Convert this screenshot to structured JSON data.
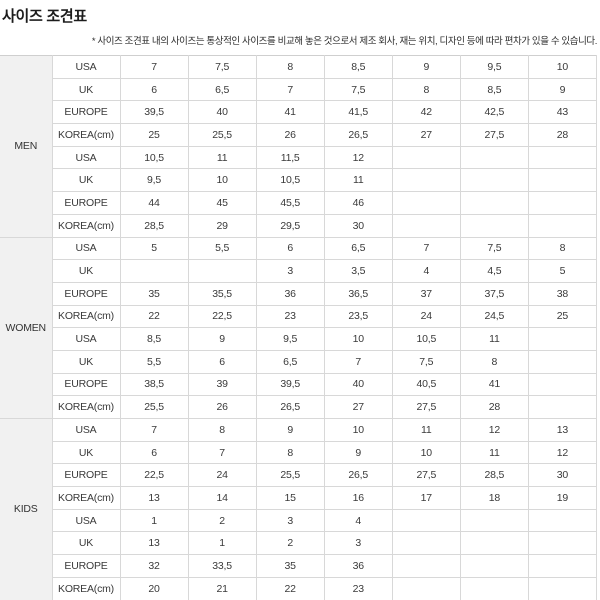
{
  "page": {
    "title": "사이즈 조견표",
    "note": "* 사이즈 조견표 내의 사이즈는 통상적인 사이즈를 비교해 놓은 것으로서 제조 회사, 재는 위치, 디자인 등에 따라 편차가 있을 수 있습니다."
  },
  "colors": {
    "group_bg": "#f1f1f1",
    "grid_border": "#d8d8d8",
    "section_border": "#a8a8a8",
    "text": "#3a3a3a"
  },
  "table": {
    "row_labels": [
      "USA",
      "UK",
      "EUROPE",
      "KOREA(cm)"
    ],
    "sections": [
      {
        "group": "MEN",
        "blocks": [
          {
            "rows": [
              [
                "7",
                "7,5",
                "8",
                "8,5",
                "9",
                "9,5",
                "10"
              ],
              [
                "6",
                "6,5",
                "7",
                "7,5",
                "8",
                "8,5",
                "9"
              ],
              [
                "39,5",
                "40",
                "41",
                "41,5",
                "42",
                "42,5",
                "43"
              ],
              [
                "25",
                "25,5",
                "26",
                "26,5",
                "27",
                "27,5",
                "28"
              ]
            ]
          },
          {
            "rows": [
              [
                "10,5",
                "11",
                "11,5",
                "12",
                "",
                "",
                ""
              ],
              [
                "9,5",
                "10",
                "10,5",
                "11",
                "",
                "",
                ""
              ],
              [
                "44",
                "45",
                "45,5",
                "46",
                "",
                "",
                ""
              ],
              [
                "28,5",
                "29",
                "29,5",
                "30",
                "",
                "",
                ""
              ]
            ]
          }
        ]
      },
      {
        "group": "WOMEN",
        "blocks": [
          {
            "rows": [
              [
                "5",
                "5,5",
                "6",
                "6,5",
                "7",
                "7,5",
                "8"
              ],
              [
                "",
                "",
                "3",
                "3,5",
                "4",
                "4,5",
                "5"
              ],
              [
                "35",
                "35,5",
                "36",
                "36,5",
                "37",
                "37,5",
                "38"
              ],
              [
                "22",
                "22,5",
                "23",
                "23,5",
                "24",
                "24,5",
                "25"
              ]
            ]
          },
          {
            "rows": [
              [
                "8,5",
                "9",
                "9,5",
                "10",
                "10,5",
                "11",
                ""
              ],
              [
                "5,5",
                "6",
                "6,5",
                "7",
                "7,5",
                "8",
                ""
              ],
              [
                "38,5",
                "39",
                "39,5",
                "40",
                "40,5",
                "41",
                ""
              ],
              [
                "25,5",
                "26",
                "26,5",
                "27",
                "27,5",
                "28",
                ""
              ]
            ]
          }
        ]
      },
      {
        "group": "KIDS",
        "blocks": [
          {
            "rows": [
              [
                "7",
                "8",
                "9",
                "10",
                "11",
                "12",
                "13"
              ],
              [
                "6",
                "7",
                "8",
                "9",
                "10",
                "11",
                "12"
              ],
              [
                "22,5",
                "24",
                "25,5",
                "26,5",
                "27,5",
                "28,5",
                "30"
              ],
              [
                "13",
                "14",
                "15",
                "16",
                "17",
                "18",
                "19"
              ]
            ]
          },
          {
            "rows": [
              [
                "1",
                "2",
                "3",
                "4",
                "",
                "",
                ""
              ],
              [
                "13",
                "1",
                "2",
                "3",
                "",
                "",
                ""
              ],
              [
                "32",
                "33,5",
                "35",
                "36",
                "",
                "",
                ""
              ],
              [
                "20",
                "21",
                "22",
                "23",
                "",
                "",
                ""
              ]
            ]
          }
        ]
      }
    ]
  }
}
